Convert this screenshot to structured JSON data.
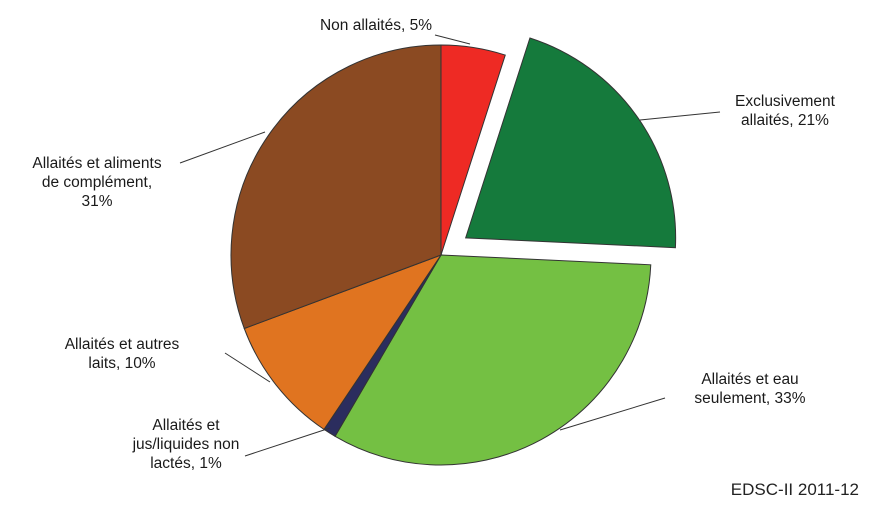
{
  "chart_data": {
    "type": "pie",
    "slices": [
      {
        "key": "non-allaites",
        "label_lines": [
          "Non allaités, 5%"
        ],
        "value": 5,
        "color": "#ee2a24"
      },
      {
        "key": "exclusivement-allaites",
        "label_lines": [
          "Exclusivement",
          "allaités, 21%"
        ],
        "value": 21,
        "color": "#157a3c"
      },
      {
        "key": "allaites-eau",
        "label_lines": [
          "Allaités et eau",
          "seulement, 33%"
        ],
        "value": 33,
        "color": "#74c043"
      },
      {
        "key": "allaites-jus",
        "label_lines": [
          "Allaités et",
          "jus/liquides non",
          "lactés, 1%"
        ],
        "value": 1,
        "color": "#2b2d5e"
      },
      {
        "key": "allaites-autres-laits",
        "label_lines": [
          "Allaités et autres",
          "laits, 10%"
        ],
        "value": 10,
        "color": "#e07420"
      },
      {
        "key": "allaites-aliments",
        "label_lines": [
          "Allaités et aliments",
          "de complément,",
          "31%"
        ],
        "value": 31,
        "color": "#8b4a22"
      }
    ],
    "exploded": [
      "exclusivement-allaites"
    ],
    "legend": "none"
  },
  "source": "EDSC-II 2011-12"
}
